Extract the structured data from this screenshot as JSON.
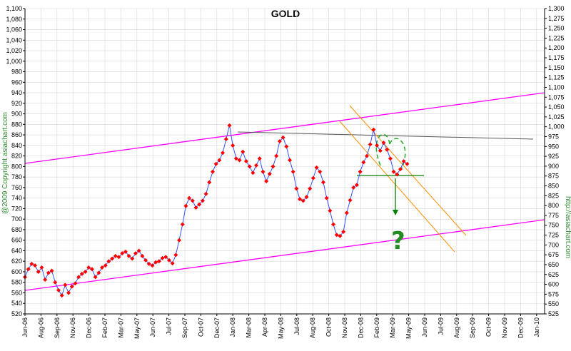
{
  "chart_data": {
    "type": "line",
    "title": "GOLD",
    "copyright_left": "@2009 Copyright asiachart.com",
    "copyright_right": "http://asiachart.com",
    "annotation": "?",
    "x_ticks": [
      "Jun-06",
      "Aug-06",
      "Sep-06",
      "Nov-06",
      "Dec-06",
      "Feb-07",
      "Mar-07",
      "May-07",
      "Jun-07",
      "Jul-07",
      "Sep-07",
      "Oct-07",
      "Dec-07",
      "Jan-08",
      "Mar-08",
      "Apr-08",
      "May-08",
      "Jul-08",
      "Aug-08",
      "Oct-08",
      "Nov-08",
      "Dec-08",
      "Feb-09",
      "Mar-09",
      "May-09",
      "Jun-09",
      "Jul-09",
      "Aug-09",
      "Sep-09",
      "Oct-09",
      "Nov-09",
      "Dec-09",
      "Jan-10"
    ],
    "y_left": {
      "min": 520,
      "max": 1100,
      "step": 20
    },
    "y_right": {
      "min": 525,
      "max": 1300,
      "step": 25
    },
    "series": [
      {
        "color": "#ff0000",
        "values": [
          590,
          605,
          615,
          612,
          600,
          608,
          585,
          598,
          602,
          580,
          565,
          555,
          575,
          560,
          572,
          578,
          590,
          596,
          600,
          608,
          605,
          590,
          598,
          608,
          612,
          620,
          625,
          630,
          628,
          635,
          638,
          630,
          625,
          635,
          640,
          630,
          622,
          615,
          612,
          618,
          620,
          626,
          628,
          622,
          616,
          632,
          660,
          690,
          725,
          740,
          735,
          722,
          728,
          735,
          748,
          770,
          790,
          805,
          812,
          826,
          852,
          878,
          840,
          815,
          812,
          828,
          810,
          800,
          788,
          802,
          815,
          790,
          772,
          786,
          800,
          820,
          848,
          855,
          838,
          812,
          790,
          758,
          738,
          735,
          742,
          758,
          778,
          798,
          790,
          770,
          740,
          716,
          690,
          670,
          668,
          676,
          712,
          736,
          760,
          765,
          790,
          808,
          820,
          842,
          870,
          840,
          830,
          845,
          832,
          815,
          790,
          785,
          795,
          810,
          805
        ]
      }
    ]
  }
}
